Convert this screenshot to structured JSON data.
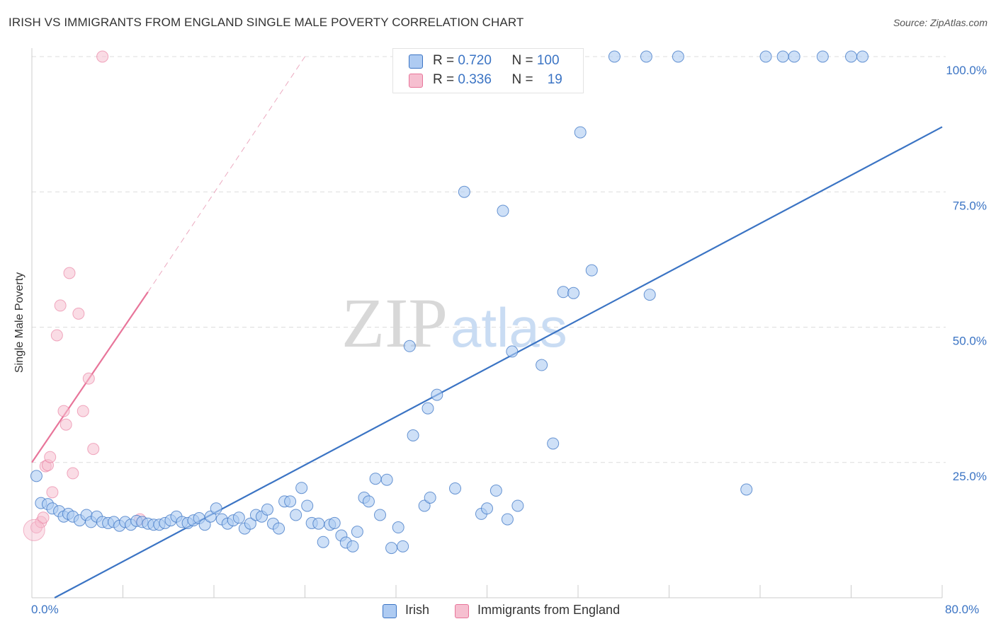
{
  "header": {
    "title": "IRISH VS IMMIGRANTS FROM ENGLAND SINGLE MALE POVERTY CORRELATION CHART",
    "source": "Source: ZipAtlas.com"
  },
  "watermark": {
    "zip": "ZIP",
    "atlas": "atlas"
  },
  "legend_top": {
    "rows": [
      {
        "r_label": "R = ",
        "r_value": "0.720",
        "n_label": "N = ",
        "n_value": "100"
      },
      {
        "r_label": "R = ",
        "r_value": "0.336",
        "n_label": "N = ",
        "n_value": "19"
      }
    ]
  },
  "legend_bottom": {
    "irish": "Irish",
    "england": "Immigrants from England"
  },
  "chart_data": {
    "type": "scatter",
    "title": "IRISH VS IMMIGRANTS FROM ENGLAND SINGLE MALE POVERTY CORRELATION CHART",
    "xlabel": "",
    "ylabel": "Single Male Poverty",
    "xlim": [
      0,
      80
    ],
    "ylim": [
      0,
      100
    ],
    "x_tick_labels": [
      "0.0%",
      "80.0%"
    ],
    "y_tick_labels": [
      {
        "value": 25,
        "label": "25.0%"
      },
      {
        "value": 50,
        "label": "50.0%"
      },
      {
        "value": 75,
        "label": "75.0%"
      },
      {
        "value": 100,
        "label": "100.0%"
      }
    ],
    "grid": true,
    "legend_position": "bottom",
    "colors": {
      "irish": "#3b74c4",
      "irish_fill": "#aecbf2",
      "england": "#e8759a",
      "england_fill": "#f6bfd0"
    },
    "series": [
      {
        "name": "Irish",
        "color": "#3b74c4",
        "trendline": {
          "x": [
            2.0,
            80.0
          ],
          "y": [
            0.0,
            87.0
          ]
        },
        "points": [
          [
            0.4,
            22.5
          ],
          [
            0.8,
            17.5
          ],
          [
            1.4,
            17.3
          ],
          [
            1.8,
            16.5
          ],
          [
            2.4,
            16.0
          ],
          [
            2.8,
            15.0
          ],
          [
            3.2,
            15.5
          ],
          [
            3.6,
            15.0
          ],
          [
            4.2,
            14.3
          ],
          [
            4.8,
            15.3
          ],
          [
            5.2,
            14.0
          ],
          [
            5.7,
            15.0
          ],
          [
            6.2,
            14.0
          ],
          [
            6.7,
            13.8
          ],
          [
            7.2,
            14.0
          ],
          [
            7.7,
            13.3
          ],
          [
            8.2,
            14.0
          ],
          [
            8.7,
            13.5
          ],
          [
            9.2,
            14.2
          ],
          [
            9.7,
            14.0
          ],
          [
            10.2,
            13.7
          ],
          [
            10.7,
            13.5
          ],
          [
            11.2,
            13.5
          ],
          [
            11.7,
            13.8
          ],
          [
            12.2,
            14.3
          ],
          [
            12.7,
            15.0
          ],
          [
            13.2,
            14.0
          ],
          [
            13.7,
            13.8
          ],
          [
            14.2,
            14.3
          ],
          [
            14.7,
            14.7
          ],
          [
            15.2,
            13.5
          ],
          [
            15.7,
            15.0
          ],
          [
            16.2,
            16.5
          ],
          [
            16.7,
            14.5
          ],
          [
            17.2,
            13.7
          ],
          [
            17.7,
            14.3
          ],
          [
            18.2,
            14.8
          ],
          [
            18.7,
            12.8
          ],
          [
            19.2,
            13.7
          ],
          [
            19.7,
            15.3
          ],
          [
            20.2,
            15.0
          ],
          [
            20.7,
            16.3
          ],
          [
            21.2,
            13.7
          ],
          [
            21.7,
            12.8
          ],
          [
            22.2,
            17.8
          ],
          [
            22.7,
            17.8
          ],
          [
            23.2,
            15.3
          ],
          [
            23.7,
            20.3
          ],
          [
            24.2,
            17.0
          ],
          [
            24.6,
            13.8
          ],
          [
            25.2,
            13.7
          ],
          [
            25.6,
            10.3
          ],
          [
            26.2,
            13.5
          ],
          [
            26.6,
            13.8
          ],
          [
            27.2,
            11.5
          ],
          [
            27.6,
            10.2
          ],
          [
            28.2,
            9.5
          ],
          [
            28.6,
            12.2
          ],
          [
            29.2,
            18.5
          ],
          [
            29.6,
            17.8
          ],
          [
            30.2,
            22.0
          ],
          [
            30.6,
            15.3
          ],
          [
            31.2,
            21.8
          ],
          [
            31.6,
            9.2
          ],
          [
            32.2,
            13.0
          ],
          [
            32.6,
            9.5
          ],
          [
            33.2,
            46.5
          ],
          [
            33.5,
            30.0
          ],
          [
            34.5,
            17.0
          ],
          [
            34.8,
            35.0
          ],
          [
            35.0,
            18.5
          ],
          [
            35.6,
            37.5
          ],
          [
            37.2,
            20.2
          ],
          [
            37.6,
            94.5
          ],
          [
            38.0,
            75.0
          ],
          [
            39.5,
            15.5
          ],
          [
            40.0,
            16.5
          ],
          [
            40.8,
            19.8
          ],
          [
            41.4,
            71.5
          ],
          [
            41.8,
            14.5
          ],
          [
            42.2,
            45.5
          ],
          [
            42.7,
            17.0
          ],
          [
            43.0,
            100.0
          ],
          [
            44.8,
            43.0
          ],
          [
            45.8,
            28.5
          ],
          [
            46.7,
            56.5
          ],
          [
            47.6,
            56.3
          ],
          [
            48.2,
            86.0
          ],
          [
            49.2,
            60.5
          ],
          [
            51.2,
            100.0
          ],
          [
            54.0,
            100.0
          ],
          [
            54.3,
            56.0
          ],
          [
            56.8,
            100.0
          ],
          [
            62.8,
            20.0
          ],
          [
            64.5,
            100.0
          ],
          [
            66.0,
            100.0
          ],
          [
            67.0,
            100.0
          ],
          [
            69.5,
            100.0
          ],
          [
            72.0,
            100.0
          ],
          [
            73.0,
            100.0
          ]
        ]
      },
      {
        "name": "Immigrants from England",
        "color": "#e8759a",
        "trendline": {
          "x": [
            0.0,
            10.2
          ],
          "y": [
            25.0,
            56.5
          ],
          "dashed_to": [
            24.0,
            100.0
          ]
        },
        "points": [
          [
            0.4,
            13.0
          ],
          [
            0.8,
            14.0
          ],
          [
            1.0,
            14.8
          ],
          [
            1.2,
            24.3
          ],
          [
            1.4,
            24.5
          ],
          [
            1.6,
            26.0
          ],
          [
            1.8,
            19.5
          ],
          [
            2.2,
            48.5
          ],
          [
            2.5,
            54.0
          ],
          [
            2.8,
            34.5
          ],
          [
            3.0,
            32.0
          ],
          [
            3.3,
            60.0
          ],
          [
            3.6,
            23.0
          ],
          [
            4.1,
            52.5
          ],
          [
            4.5,
            34.5
          ],
          [
            5.0,
            40.5
          ],
          [
            5.4,
            27.5
          ],
          [
            6.2,
            100.0
          ],
          [
            9.5,
            14.5
          ]
        ]
      }
    ]
  }
}
